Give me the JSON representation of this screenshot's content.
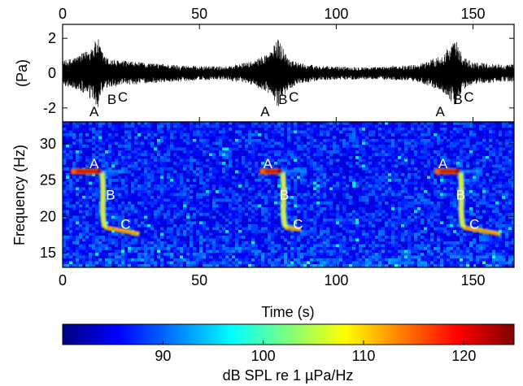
{
  "chart_data": [
    {
      "type": "line",
      "name": "waveform",
      "ylabel": "(Pa)",
      "xlim": [
        0,
        165
      ],
      "ylim": [
        -2.8,
        2.8
      ],
      "x_ticks": [
        0,
        50,
        100,
        150
      ],
      "y_ticks": [
        2,
        0,
        -2
      ],
      "x_tick_position": "top",
      "series_color": "#000000",
      "envelope": {
        "x": [
          0,
          4,
          8,
          11,
          13,
          14,
          16,
          20,
          30,
          50,
          60,
          70,
          76,
          79,
          80,
          82,
          86,
          95,
          115,
          130,
          138,
          143,
          144,
          146,
          150,
          160,
          165
        ],
        "values": [
          0.7,
          0.9,
          1.2,
          1.7,
          2.0,
          1.4,
          0.9,
          0.75,
          0.6,
          0.4,
          0.4,
          0.7,
          1.3,
          2.05,
          1.7,
          1.0,
          0.6,
          0.4,
          0.35,
          0.5,
          1.0,
          1.8,
          1.85,
          1.0,
          0.65,
          0.5,
          0.5
        ]
      },
      "annotations": [
        {
          "text": "A",
          "x": 11.5,
          "y": -2.2
        },
        {
          "text": "B",
          "x": 18,
          "y": -1.5
        },
        {
          "text": "C",
          "x": 22,
          "y": -1.35
        },
        {
          "text": "A",
          "x": 74,
          "y": -2.2
        },
        {
          "text": "B",
          "x": 80.5,
          "y": -1.5
        },
        {
          "text": "C",
          "x": 84.5,
          "y": -1.35
        },
        {
          "text": "A",
          "x": 138,
          "y": -2.2
        },
        {
          "text": "B",
          "x": 144.5,
          "y": -1.5
        },
        {
          "text": "C",
          "x": 148.5,
          "y": -1.35
        }
      ]
    },
    {
      "type": "heatmap",
      "name": "spectrogram",
      "xlabel": "Time (s)",
      "ylabel": "Frequency (Hz)",
      "xlim": [
        0,
        165
      ],
      "ylim": [
        13,
        33
      ],
      "x_ticks": [
        0,
        50,
        100,
        150
      ],
      "y_ticks": [
        30,
        25,
        20,
        15
      ],
      "calls": [
        {
          "a_start": 3,
          "a_end": 14,
          "a_freq": 26.2,
          "b_time": 14.5,
          "b_top": 26.0,
          "b_bottom": 18.5,
          "c_end": 28,
          "c_freq_end": 17.6
        },
        {
          "a_start": 72,
          "a_end": 80,
          "a_freq": 26.2,
          "b_time": 80.5,
          "b_top": 26.0,
          "b_bottom": 18.5,
          "c_end": 87,
          "c_freq_end": 18.2
        },
        {
          "a_start": 136,
          "a_end": 145,
          "a_freq": 26.2,
          "b_time": 145.5,
          "b_top": 26.0,
          "b_bottom": 18.5,
          "c_end": 160,
          "c_freq_end": 17.6
        }
      ],
      "annotations": [
        {
          "text": "A",
          "x": 11.5,
          "y": 27.3
        },
        {
          "text": "B",
          "x": 17.5,
          "y": 23.0
        },
        {
          "text": "C",
          "x": 23,
          "y": 19.0
        },
        {
          "text": "A",
          "x": 75,
          "y": 27.3
        },
        {
          "text": "B",
          "x": 81,
          "y": 23.0
        },
        {
          "text": "C",
          "x": 86,
          "y": 19.0
        },
        {
          "text": "A",
          "x": 139,
          "y": 27.3
        },
        {
          "text": "B",
          "x": 145.5,
          "y": 23.0
        },
        {
          "text": "C",
          "x": 150.5,
          "y": 19.0
        }
      ],
      "annotation_color": "#ffffff"
    },
    {
      "type": "colorbar",
      "name": "colorbar",
      "label": "dB SPL re 1 µPa/Hz",
      "range": [
        80,
        125
      ],
      "ticks": [
        90,
        100,
        110,
        120
      ],
      "colormap": [
        "#00007f",
        "#0000ff",
        "#007fff",
        "#00ffff",
        "#7fff7f",
        "#ffff00",
        "#ff7f00",
        "#ff0000",
        "#7f0000"
      ]
    }
  ]
}
